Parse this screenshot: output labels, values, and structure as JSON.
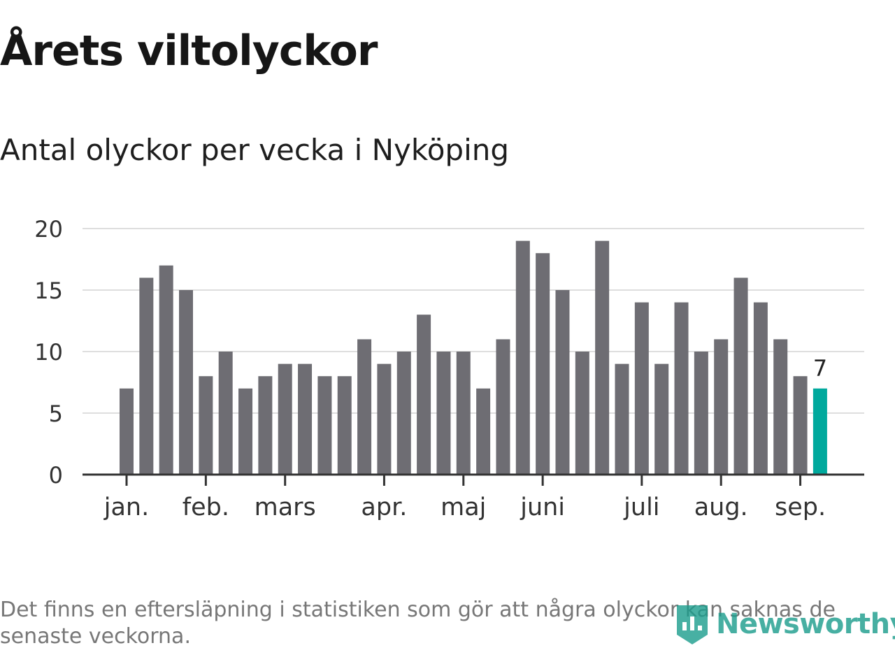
{
  "chart_data": {
    "type": "bar",
    "title": "Årets viltolyckor",
    "subtitle": "Antal olyckor per vecka i Nyköping",
    "xlabel": "",
    "ylabel": "",
    "ylim": [
      0,
      20
    ],
    "yticks": [
      "0",
      "5",
      "10",
      "15",
      "20"
    ],
    "grid": true,
    "x_tick_labels": [
      {
        "label": "jan.",
        "bar_index": 0
      },
      {
        "label": "feb.",
        "bar_index": 4
      },
      {
        "label": "mars",
        "bar_index": 8
      },
      {
        "label": "apr.",
        "bar_index": 13
      },
      {
        "label": "maj",
        "bar_index": 17
      },
      {
        "label": "juni",
        "bar_index": 21
      },
      {
        "label": "juli",
        "bar_index": 26
      },
      {
        "label": "aug.",
        "bar_index": 30
      },
      {
        "label": "sep.",
        "bar_index": 34
      }
    ],
    "values": [
      7,
      16,
      17,
      15,
      8,
      10,
      7,
      8,
      9,
      9,
      8,
      8,
      11,
      9,
      10,
      13,
      10,
      10,
      7,
      11,
      19,
      18,
      15,
      10,
      19,
      9,
      14,
      9,
      14,
      10,
      11,
      16,
      14,
      11,
      8,
      7
    ],
    "bar_color": "#6e6d73",
    "highlight_color": "#00a99d",
    "highlight_index": 35,
    "highlight_label": "7"
  },
  "footnote": "Det finns en eftersläpning i statistiken som gör att några olyckor kan saknas de senaste veckorna.",
  "logo": {
    "text": "Newsworthy",
    "icon": "newsworthy-logo-icon",
    "color": "#1a9c8c"
  }
}
